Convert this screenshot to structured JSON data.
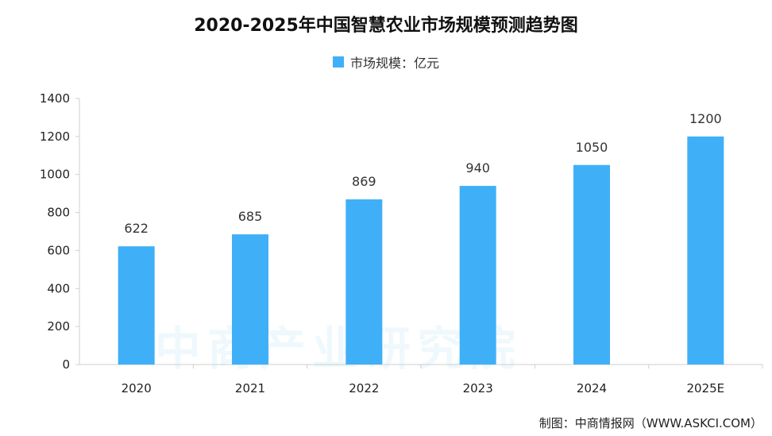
{
  "chart_data": {
    "type": "bar",
    "title": "2020-2025年中国智慧农业市场规模预测趋势图",
    "legend": [
      {
        "name": "市场规模：亿元",
        "color": "#3fb0f7"
      }
    ],
    "categories": [
      "2020",
      "2021",
      "2022",
      "2023",
      "2024",
      "2025E"
    ],
    "series": [
      {
        "name": "市场规模：亿元",
        "values": [
          622,
          685,
          869,
          940,
          1050,
          1200
        ],
        "color": "#3fb0f7"
      }
    ],
    "ylim": [
      0,
      1400
    ],
    "yticks": [
      0,
      200,
      400,
      600,
      800,
      1000,
      1200,
      1400
    ],
    "grid": false,
    "legend_position": "top-center"
  },
  "source": "制图：中商情报网（WWW.ASKCI.COM）",
  "watermark": "中商产业研究院"
}
